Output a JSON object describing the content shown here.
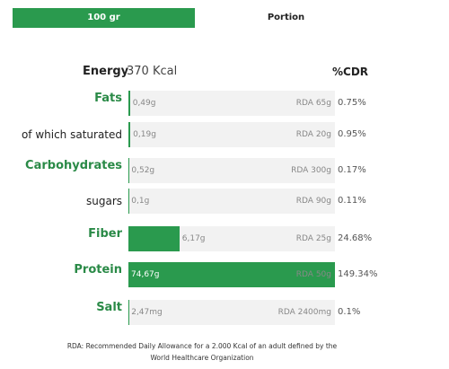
{
  "tabs": [
    {
      "label": "100 gr",
      "active": true
    },
    {
      "label": "Portion",
      "active": false
    }
  ],
  "energy": {
    "label": "Energy",
    "value": "370 Kcal"
  },
  "cdr_header": "%CDR",
  "rows": [
    {
      "label": "Fats",
      "main": true,
      "amount": "0,49g",
      "rda": "RDA 65g",
      "cdr": "0.75%"
    },
    {
      "label": "of which saturated",
      "main": false,
      "amount": "0,19g",
      "rda": "RDA 20g",
      "cdr": "0.95%"
    },
    {
      "label": "Carbohydrates",
      "main": true,
      "amount": "0,52g",
      "rda": "RDA 300g",
      "cdr": "0.17%"
    },
    {
      "label": "sugars",
      "main": false,
      "amount": "0,1g",
      "rda": "RDA 90g",
      "cdr": "0.11%"
    },
    {
      "label": "Fiber",
      "main": true,
      "amount": "6,17g",
      "rda": "RDA 25g",
      "cdr": "24.68%"
    },
    {
      "label": "Protein",
      "main": true,
      "amount": "74,67g",
      "rda": "RDA 50g",
      "cdr": "149.34%"
    },
    {
      "label": "Salt",
      "main": true,
      "amount": "2,47mg",
      "rda": "RDA 2400mg",
      "cdr": "0.1%"
    }
  ],
  "footnote": [
    "RDA: Recommended Daily Allowance for a 2.000 Kcal of an adult defined by the",
    "World Healthcare Organization"
  ]
}
